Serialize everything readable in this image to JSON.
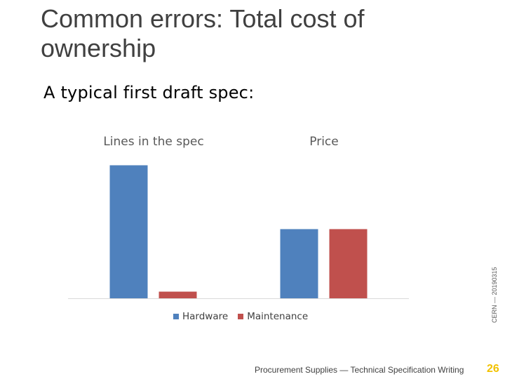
{
  "slide": {
    "title": "Common errors: Total cost of ownership",
    "subtitle": "A typical first draft spec:",
    "side_text": "CERN — 20190315",
    "footer": "Procurement Supplies — Technical Specification Writing",
    "page_number": "26"
  },
  "chart_data": {
    "type": "bar",
    "categories": [
      "Lines in the spec",
      "Price"
    ],
    "series": [
      {
        "name": "Hardware",
        "color": "#4f81bd",
        "values": [
          100,
          52
        ]
      },
      {
        "name": "Maintenance",
        "color": "#c0504d",
        "values": [
          5,
          52
        ]
      }
    ],
    "ylim": [
      0,
      105
    ],
    "grid": false,
    "legend_position": "bottom"
  }
}
